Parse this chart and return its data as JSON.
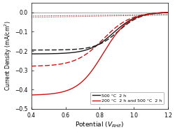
{
  "title": "",
  "xlabel": "Potential ($V_{RHE}$)",
  "ylabel": "Current Density (mA/cm$^2$)",
  "xlim": [
    0.4,
    1.2
  ],
  "ylim": [
    -0.5,
    0.05
  ],
  "yticks": [
    0.0,
    -0.1,
    -0.2,
    -0.3,
    -0.4,
    -0.5
  ],
  "xticks": [
    0.4,
    0.6,
    0.8,
    1.0,
    1.2
  ],
  "legend1_label": "500 °C  2 h",
  "legend2_label": "200 °C  2 h and 500 °C  2 h",
  "color_black": "#1a1a1a",
  "color_red": "#cc1111",
  "color_dark_gray": "#555555",
  "color_dark_red": "#cc4444"
}
